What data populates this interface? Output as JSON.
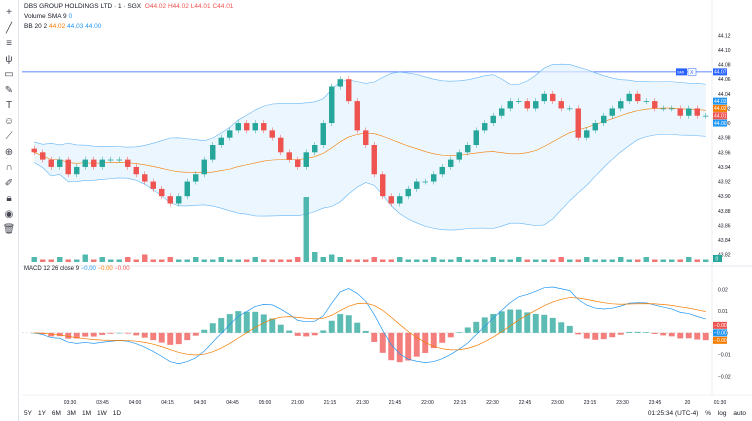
{
  "header": {
    "symbol": "DBS GROUP HOLDINGS LTD · 1 · SGX",
    "o_label": "O",
    "o": "44.02",
    "h_label": "H",
    "h": "44.02",
    "l_label": "L",
    "l": "44.01",
    "c_label": "C",
    "c": "44.01",
    "volume_label": "Volume SMA 9",
    "volume_value": "0",
    "bb_label": "BB 20 2",
    "bb_basis": "44.02",
    "bb_upper": "44.03",
    "bb_lower": "44.00"
  },
  "macd_header": {
    "label": "MACD 12 26 close 9",
    "v1": "−0.00",
    "v2": "−0.00",
    "v3": "−0.00"
  },
  "toolbar": {
    "icons": [
      "plus-icon",
      "trend-line-icon",
      "horizontal-lines-icon",
      "pitchfork-icon",
      "rectangle-icon",
      "brush-icon",
      "text-icon",
      "emoji-icon",
      "ruler-icon",
      "zoom-icon",
      "magnet-icon",
      "lock-draw-icon",
      "lock-icon",
      "eye-icon",
      "trash-icon"
    ]
  },
  "price_axis": {
    "ticks": [
      "44.12",
      "44.10",
      "44.08",
      "44.06",
      "44.04",
      "44.02",
      "44.00",
      "43.98",
      "43.96",
      "43.94",
      "43.92",
      "43.90",
      "43.88",
      "43.86",
      "43.84",
      "43.82"
    ],
    "range": [
      43.81,
      44.13
    ],
    "labels": [
      {
        "text": "44.07",
        "color": "#2962ff",
        "value": 44.07
      },
      {
        "text": "44.03",
        "color": "#2196f3",
        "value": 44.03
      },
      {
        "text": "44.02",
        "color": "#f57c00",
        "value": 44.02
      },
      {
        "text": "44.01",
        "color": "#ef5350",
        "value": 44.01
      },
      {
        "text": "44.00",
        "color": "#2196f3",
        "value": 44.0
      }
    ],
    "line_badge": "SMI",
    "line_close": "X",
    "volume_badge": "0"
  },
  "macd_axis": {
    "ticks": [
      "0.02",
      "0.01",
      "0.00",
      "−0.01",
      "−0.02"
    ],
    "range": [
      -0.024,
      0.028
    ],
    "labels": [
      {
        "text": "−0.00",
        "color": "#ef5350"
      },
      {
        "text": "−0.00",
        "color": "#2196f3"
      },
      {
        "text": "−0.00",
        "color": "#f57c00"
      }
    ]
  },
  "time_axis": {
    "ticks": [
      "03:30",
      "03:45",
      "04:00",
      "04:15",
      "04:30",
      "04:45",
      "05:00",
      "21:00",
      "21:15",
      "21:30",
      "21:45",
      "22:00",
      "22:15",
      "22:30",
      "22:45",
      "23:00",
      "23:15",
      "23:30",
      "23:45",
      "20",
      "01:30"
    ]
  },
  "bottom_bar": {
    "ranges": [
      "5Y",
      "1Y",
      "6M",
      "3M",
      "1M",
      "1W",
      "1D"
    ],
    "time": "01:25:34 (UTC-4)",
    "percent": "%",
    "log": "log",
    "auto": "auto"
  },
  "chart_data": {
    "type": "candlestick",
    "horizontal_line": 44.07,
    "colors": {
      "up": "#26a69a",
      "down": "#ef5350",
      "bb_fill": "#e3f2fd",
      "bb_line": "#64b5f6",
      "basis": "#f57c00",
      "macd": "#2196f3",
      "signal": "#f57c00"
    },
    "close_series": [
      43.96,
      43.95,
      43.94,
      43.95,
      43.93,
      43.94,
      43.95,
      43.94,
      43.95,
      43.95,
      43.95,
      43.94,
      43.93,
      43.92,
      43.91,
      43.9,
      43.89,
      43.9,
      43.92,
      43.93,
      43.95,
      43.97,
      43.98,
      43.99,
      44.0,
      43.99,
      44.0,
      43.99,
      43.98,
      43.96,
      43.95,
      43.94,
      43.96,
      43.97,
      44.0,
      44.05,
      44.06,
      44.03,
      43.99,
      43.97,
      43.93,
      43.9,
      43.89,
      43.9,
      43.91,
      43.92,
      43.92,
      43.93,
      43.94,
      43.95,
      43.96,
      43.97,
      43.99,
      44.0,
      44.01,
      44.02,
      44.03,
      44.03,
      44.02,
      44.03,
      44.04,
      44.03,
      44.02,
      44.02,
      43.98,
      43.99,
      44.0,
      44.01,
      44.02,
      44.03,
      44.04,
      44.03,
      44.03,
      44.02,
      44.02,
      44.02,
      44.01,
      44.02,
      44.01,
      44.01
    ],
    "volume_series": [
      2,
      1,
      1,
      2,
      1,
      1,
      3,
      1,
      2,
      1,
      1,
      2,
      1,
      3,
      1,
      1,
      2,
      1,
      1,
      2,
      1,
      1,
      2,
      1,
      1,
      1,
      2,
      1,
      1,
      1,
      1,
      2,
      26,
      4,
      2,
      3,
      2,
      1,
      1,
      1,
      2,
      1,
      1,
      2,
      1,
      1,
      1,
      2,
      1,
      1,
      2,
      1,
      1,
      1,
      2,
      1,
      1,
      2,
      1,
      1,
      1,
      1,
      2,
      1,
      1,
      2,
      1,
      1,
      1,
      2,
      1,
      1,
      2,
      1,
      1,
      1,
      1,
      2,
      1,
      1
    ]
  }
}
